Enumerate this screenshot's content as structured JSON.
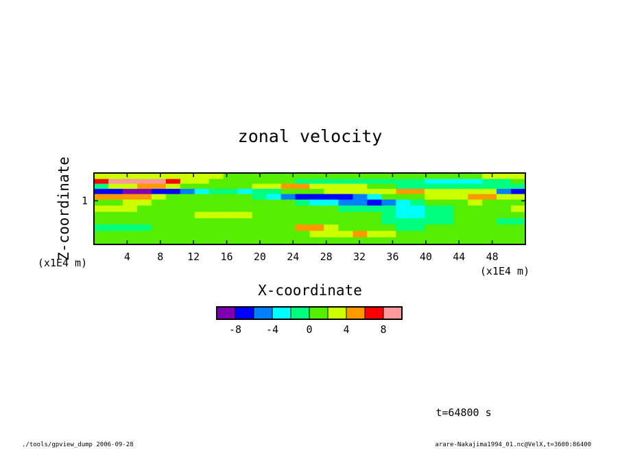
{
  "chart_data": {
    "type": "heatmap",
    "title": "zonal velocity",
    "xlabel": "X-coordinate",
    "ylabel": "Z-coordinate",
    "x_units": "(x1E4 m)",
    "y_units": "(x1E4 m)",
    "xlim": [
      0,
      52
    ],
    "ylim": [
      0.45,
      1.35
    ],
    "x_ticks": [
      4,
      8,
      12,
      16,
      20,
      24,
      28,
      32,
      36,
      40,
      44,
      48
    ],
    "y_ticks": [
      1
    ],
    "colorbar": {
      "levels": [
        -10,
        -8,
        -6,
        -4,
        -2,
        0,
        2,
        4,
        6,
        8,
        10
      ],
      "tick_labels": [
        "-8",
        "-4",
        "0",
        "4",
        "8"
      ],
      "tick_values": [
        -8,
        -4,
        0,
        4,
        8
      ],
      "colors": [
        "#7f00b2",
        "#0000ff",
        "#0080ff",
        "#00ffff",
        "#00ff7f",
        "#55ee00",
        "#ccff00",
        "#ff9900",
        "#ff0000",
        "#ff9999"
      ]
    },
    "field_rows": [
      {
        "z": 1.3,
        "values": [
          2,
          2,
          2,
          2,
          2,
          2,
          2,
          2,
          2,
          1,
          1,
          1,
          1,
          0,
          0,
          0,
          1,
          1,
          1,
          1,
          1,
          1,
          1,
          1,
          1,
          1,
          1,
          2,
          2,
          2
        ]
      },
      {
        "z": 1.25,
        "values": [
          7,
          8,
          8,
          8,
          8,
          6,
          3,
          2,
          1,
          0,
          0,
          0,
          0,
          0,
          -1,
          -1,
          -2,
          -2,
          -2,
          -2,
          -2,
          -2,
          -2,
          -3,
          -3,
          -3,
          -3,
          -2,
          -1,
          0
        ]
      },
      {
        "z": 1.18,
        "values": [
          -2,
          3,
          3,
          4,
          4,
          3,
          1,
          0,
          0,
          1,
          1,
          3,
          3,
          4,
          4,
          2,
          2,
          2,
          2,
          1,
          0,
          -1,
          -1,
          -2,
          -2,
          -2,
          -1,
          -1,
          -2,
          -2
        ]
      },
      {
        "z": 1.12,
        "values": [
          -7,
          -8,
          -9,
          -9,
          -8,
          -7,
          -5,
          -3,
          -2,
          -2,
          -3,
          -2,
          -1,
          0,
          1,
          1,
          2,
          2,
          3,
          3,
          2,
          4,
          4,
          3,
          3,
          2,
          2,
          3,
          -6,
          -7
        ]
      },
      {
        "z": 1.05,
        "values": [
          4,
          5,
          5,
          4,
          2,
          1,
          0,
          1,
          1,
          1,
          0,
          -2,
          -4,
          -6,
          -7,
          -7,
          -7,
          -7,
          -6,
          -3,
          0,
          1,
          1,
          2,
          2,
          3,
          4,
          4,
          3,
          2
        ]
      },
      {
        "z": 0.98,
        "values": [
          1,
          1,
          2,
          2,
          1,
          1,
          0,
          0,
          1,
          1,
          1,
          1,
          0,
          0,
          -1,
          -3,
          -4,
          -5,
          -6,
          -7,
          -5,
          -3,
          -1,
          0,
          1,
          1,
          2,
          1,
          1,
          0
        ]
      },
      {
        "z": 0.9,
        "values": [
          2,
          3,
          2,
          1,
          1,
          0,
          0,
          1,
          1,
          1,
          1,
          1,
          1,
          1,
          1,
          0,
          0,
          -1,
          -1,
          -1,
          -2,
          -3,
          -3,
          -2,
          -1,
          0,
          1,
          1,
          1,
          2
        ]
      },
      {
        "z": 0.82,
        "values": [
          0,
          0,
          1,
          1,
          1,
          1,
          1,
          2,
          2,
          2,
          2,
          1,
          1,
          1,
          1,
          1,
          0,
          0,
          0,
          0,
          -2,
          -3,
          -3,
          -2,
          -1,
          0,
          0,
          1,
          1,
          1
        ]
      },
      {
        "z": 0.74,
        "values": [
          1,
          1,
          1,
          1,
          1,
          1,
          1,
          1,
          1,
          1,
          1,
          1,
          1,
          1,
          1,
          1,
          1,
          1,
          1,
          0,
          -1,
          -2,
          -2,
          -1,
          -1,
          0,
          0,
          0,
          -1,
          -1
        ]
      },
      {
        "z": 0.66,
        "values": [
          -1,
          -2,
          -2,
          -1,
          0,
          0,
          1,
          1,
          1,
          1,
          1,
          1,
          1,
          1,
          4,
          4,
          3,
          1,
          1,
          1,
          0,
          -1,
          -1,
          0,
          0,
          0,
          1,
          1,
          1,
          1
        ]
      },
      {
        "z": 0.58,
        "values": [
          0,
          0,
          0,
          1,
          1,
          1,
          1,
          1,
          1,
          1,
          1,
          1,
          1,
          1,
          1,
          2,
          3,
          3,
          4,
          3,
          2,
          1,
          1,
          1,
          1,
          1,
          1,
          1,
          1,
          1
        ]
      },
      {
        "z": 0.5,
        "values": [
          1,
          1,
          1,
          1,
          1,
          1,
          1,
          1,
          1,
          1,
          1,
          1,
          1,
          1,
          1,
          1,
          1,
          1,
          1,
          1,
          1,
          1,
          1,
          1,
          1,
          1,
          1,
          1,
          1,
          1
        ]
      }
    ]
  },
  "footer": {
    "time_label": "t=64800 s",
    "left_note": "./tools/gpview_dump  2006-09-28",
    "right_note": "arare-Nakajima1994_01.nc@VelX,t=3600:86400"
  }
}
